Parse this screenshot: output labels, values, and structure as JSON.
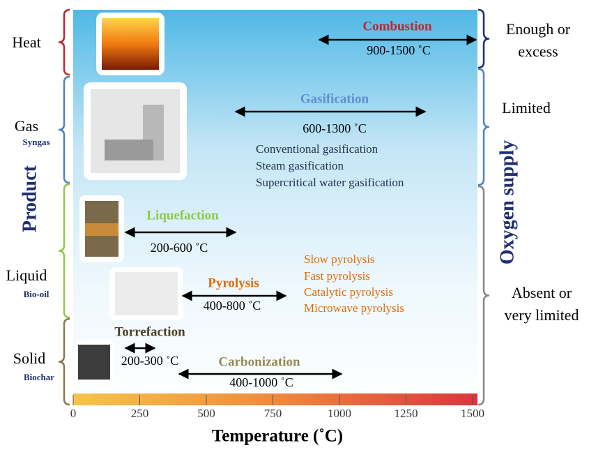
{
  "left_axis": {
    "title": "Product",
    "groups": [
      {
        "label": "Heat"
      },
      {
        "label": "Gas",
        "sublabel": "Syngas"
      },
      {
        "label": "Liquid",
        "sublabel": "Bio-oil"
      },
      {
        "label": "Solid",
        "sublabel": "Biochar"
      }
    ]
  },
  "right_axis": {
    "title": "Oxygen supply",
    "levels": [
      {
        "lines": [
          "Enough or",
          "excess"
        ]
      },
      {
        "lines": [
          "Limited"
        ]
      },
      {
        "lines": [
          "Absent or",
          "very limited"
        ]
      }
    ]
  },
  "processes": [
    {
      "name": "Combustion",
      "range": "900-1500 ˚C"
    },
    {
      "name": "Gasification",
      "range": "600-1300 ˚C",
      "methods": [
        "Conventional gasification",
        "Steam gasification",
        "Supercritical water gasification"
      ]
    },
    {
      "name": "Liquefaction",
      "range": "200-600 ˚C"
    },
    {
      "name": "Pyrolysis",
      "range": "400-800 ˚C",
      "methods": [
        "Slow pyrolysis",
        "Fast pyrolysis",
        "Catalytic pyrolysis",
        "Microwave pyrolysis"
      ]
    },
    {
      "name": "Torrefaction",
      "range": "200-300 ˚C"
    },
    {
      "name": "Carbonization",
      "range": "400-1000 ˚C"
    }
  ],
  "temperature_axis": {
    "title": "Temperature (˚C)",
    "ticks": [
      "0",
      "250",
      "500",
      "750",
      "1000",
      "1250",
      "1500"
    ]
  }
}
